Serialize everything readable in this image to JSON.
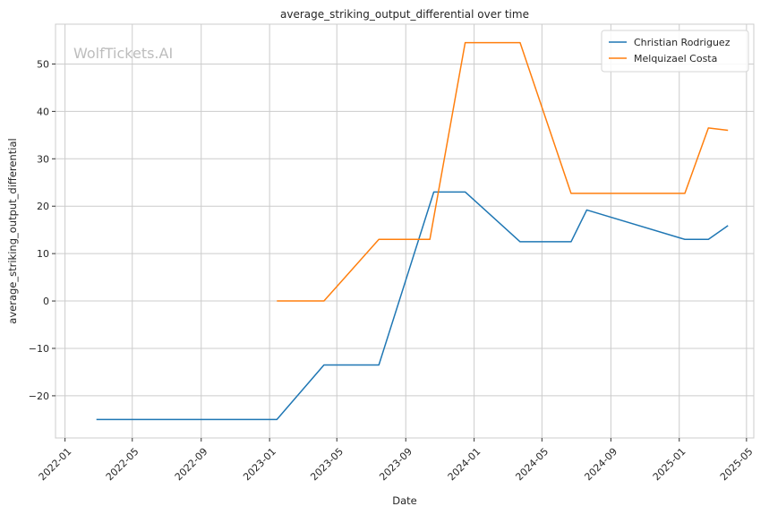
{
  "chart_data": {
    "type": "line",
    "title": "average_striking_output_differential over time",
    "xlabel": "Date",
    "ylabel": "average_striking_output_differential",
    "watermark": "WolfTickets.AI",
    "x_ticks": [
      "2022-01",
      "2022-05",
      "2022-09",
      "2023-01",
      "2023-05",
      "2023-09",
      "2024-01",
      "2024-05",
      "2024-09",
      "2025-01",
      "2025-05"
    ],
    "y_ticks": [
      -20,
      -10,
      0,
      10,
      20,
      30,
      40,
      50
    ],
    "xlim": [
      "2021-12-15",
      "2025-05-14"
    ],
    "ylim": [
      -28.9,
      58.4
    ],
    "grid": true,
    "legend_position": "top-right",
    "series": [
      {
        "name": "Christian Rodriguez",
        "color": "#1f77b4",
        "points": [
          {
            "x": "2022-02-26",
            "y": -25.0
          },
          {
            "x": "2023-01-14",
            "y": -25.0
          },
          {
            "x": "2023-04-08",
            "y": -13.5
          },
          {
            "x": "2023-07-15",
            "y": -13.5
          },
          {
            "x": "2023-10-21",
            "y": 23.0
          },
          {
            "x": "2023-12-16",
            "y": 23.0
          },
          {
            "x": "2024-03-23",
            "y": 12.5
          },
          {
            "x": "2024-06-22",
            "y": 12.5
          },
          {
            "x": "2024-07-20",
            "y": 19.2
          },
          {
            "x": "2025-01-11",
            "y": 13.0
          },
          {
            "x": "2025-02-22",
            "y": 13.0
          },
          {
            "x": "2025-03-29",
            "y": 15.9
          }
        ]
      },
      {
        "name": "Melquizael Costa",
        "color": "#ff7f0e",
        "points": [
          {
            "x": "2023-01-14",
            "y": 0.0
          },
          {
            "x": "2023-04-08",
            "y": 0.0
          },
          {
            "x": "2023-07-15",
            "y": 13.0
          },
          {
            "x": "2023-10-14",
            "y": 13.0
          },
          {
            "x": "2023-12-16",
            "y": 54.5
          },
          {
            "x": "2024-03-23",
            "y": 54.5
          },
          {
            "x": "2024-06-22",
            "y": 22.7
          },
          {
            "x": "2025-01-11",
            "y": 22.7
          },
          {
            "x": "2025-02-22",
            "y": 36.5
          },
          {
            "x": "2025-03-29",
            "y": 36.0
          }
        ]
      }
    ]
  }
}
